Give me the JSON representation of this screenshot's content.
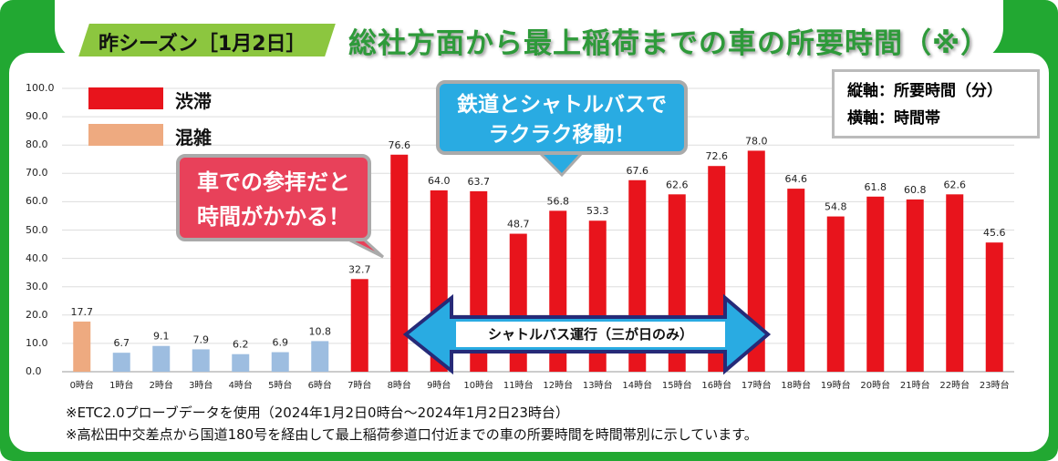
{
  "header": {
    "tag": "昨シーズン［1月2日］",
    "title": "総社方面から最上稲荷までの車の所要時間（※）"
  },
  "axis_note": {
    "y": "縦軸：所要時間（分）",
    "x": "横軸：時間帯"
  },
  "callouts": {
    "car": [
      "車での参拝だと",
      "時間がかかる！"
    ],
    "train": [
      "鉄道とシャトルバスで",
      "ラクラク移動！"
    ],
    "shuttle": "シャトルバス運行（三が日のみ）"
  },
  "notes": [
    "※ETC2.0プローブデータを使用（2024年1月2日0時台～2024年1月2日23時台）",
    "※高松田中交差点から国道180号を経由して最上稲荷参道口付近までの車の所要時間を時間帯別に示しています。"
  ],
  "colors": {
    "jutai": "#e8141c",
    "konzatsu": "#eeaa80",
    "normal": "#9dbde0",
    "frame": "#22a832"
  },
  "chart_data": {
    "type": "bar",
    "title": "総社方面から最上稲荷までの車の所要時間（※）",
    "ylabel": "所要時間（分）",
    "xlabel": "時間帯",
    "ylim": [
      0,
      100
    ],
    "yticks": [
      "0.0",
      "10.0",
      "20.0",
      "30.0",
      "40.0",
      "50.0",
      "60.0",
      "70.0",
      "80.0",
      "90.0",
      "100.0"
    ],
    "categories": [
      "0時台",
      "1時台",
      "2時台",
      "3時台",
      "4時台",
      "5時台",
      "6時台",
      "7時台",
      "8時台",
      "9時台",
      "10時台",
      "11時台",
      "12時台",
      "13時台",
      "14時台",
      "15時台",
      "16時台",
      "17時台",
      "18時台",
      "19時台",
      "20時台",
      "21時台",
      "22時台",
      "23時台"
    ],
    "values": [
      17.7,
      6.7,
      9.1,
      7.9,
      6.2,
      6.9,
      10.8,
      32.7,
      76.6,
      64.0,
      63.7,
      48.7,
      56.8,
      53.3,
      67.6,
      62.6,
      72.6,
      78.0,
      64.6,
      54.8,
      61.8,
      60.8,
      62.6,
      45.6
    ],
    "status": [
      "konzatsu",
      "normal",
      "normal",
      "normal",
      "normal",
      "normal",
      "normal",
      "jutai",
      "jutai",
      "jutai",
      "jutai",
      "jutai",
      "jutai",
      "jutai",
      "jutai",
      "jutai",
      "jutai",
      "jutai",
      "jutai",
      "jutai",
      "jutai",
      "jutai",
      "jutai",
      "jutai"
    ],
    "legend": [
      {
        "key": "jutai",
        "label": "渋滞"
      },
      {
        "key": "konzatsu",
        "label": "混雑"
      }
    ],
    "legend_position": "top-left",
    "grid": true
  }
}
